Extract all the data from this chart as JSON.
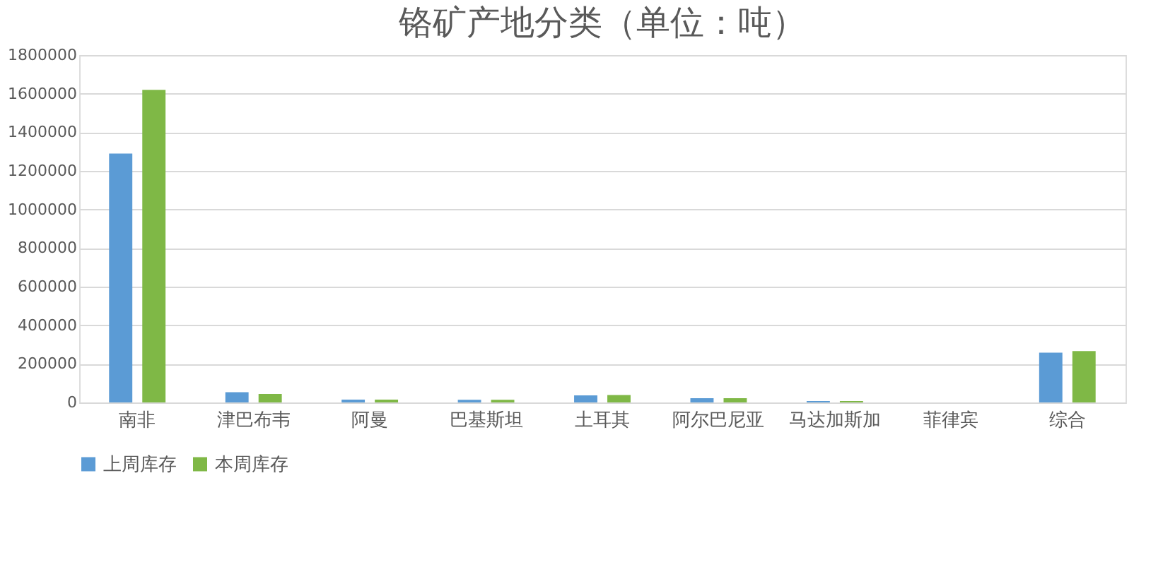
{
  "chart_data": {
    "type": "bar",
    "title": "铬矿产地分类（单位：吨）",
    "categories": [
      "南非",
      "津巴布韦",
      "阿曼",
      "巴基斯坦",
      "土耳其",
      "阿尔巴尼亚",
      "马达加斯加",
      "菲律宾",
      "综合"
    ],
    "series": [
      {
        "name": "上周库存",
        "color": "#5b9bd5",
        "values": [
          1290000,
          53000,
          15000,
          14000,
          37000,
          22000,
          7000,
          0,
          258000
        ]
      },
      {
        "name": "本周库存",
        "color": "#7fb846",
        "values": [
          1620000,
          44000,
          15000,
          14000,
          38000,
          22000,
          7000,
          0,
          266000
        ]
      }
    ],
    "ylim": [
      0,
      1800000
    ],
    "yticks": [
      0,
      200000,
      400000,
      600000,
      800000,
      1000000,
      1200000,
      1400000,
      1600000,
      1800000
    ],
    "grid": "y",
    "legend": "bottom"
  }
}
